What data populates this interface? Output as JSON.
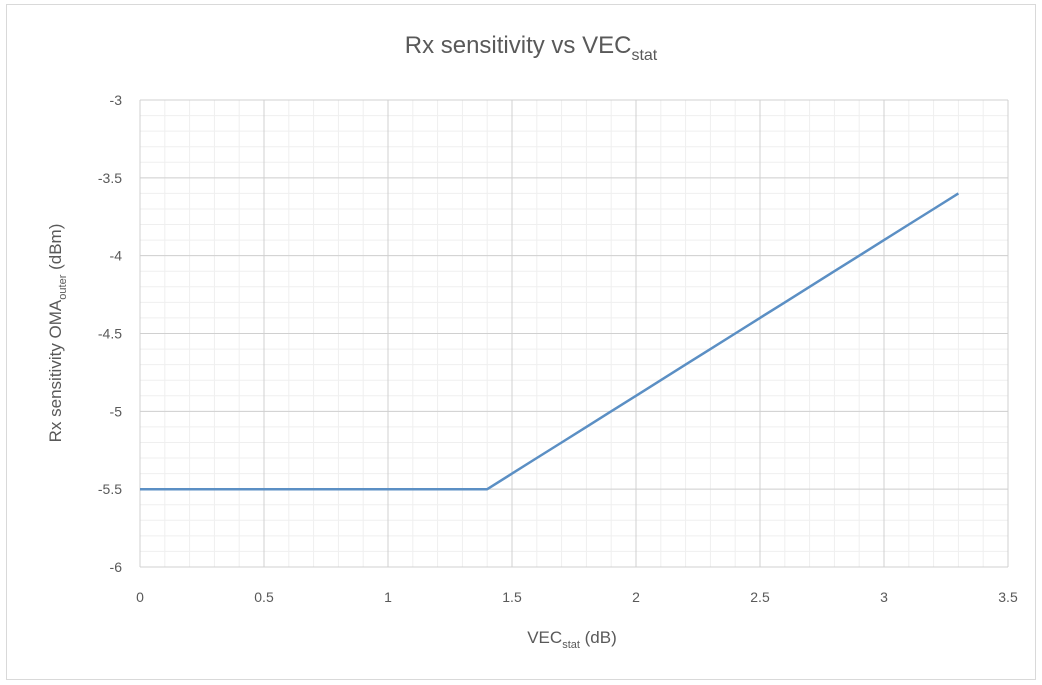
{
  "chart_data": {
    "type": "line",
    "title": {
      "main": "Rx sensitivity vs VEC",
      "sub": "stat"
    },
    "xlabel": {
      "pre": "VEC",
      "sub": "stat",
      "post": " (dB)"
    },
    "ylabel": {
      "pre": "Rx sensitivity OMA",
      "sub": "outer",
      "post": " (dBm)"
    },
    "xlim": [
      0,
      3.5
    ],
    "ylim": [
      -6,
      -3
    ],
    "x_major_step": 0.5,
    "y_major_step": 0.5,
    "x_minor_step": 0.1,
    "y_minor_step": 0.1,
    "grid": true,
    "x_ticks": [
      "0",
      "0.5",
      "1",
      "1.5",
      "2",
      "2.5",
      "3",
      "3.5"
    ],
    "y_ticks": [
      "-3",
      "-3.5",
      "-4",
      "-4.5",
      "-5",
      "-5.5",
      "-6"
    ],
    "series": [
      {
        "color": "#5b8fc4",
        "x": [
          0,
          0.5,
          1.0,
          1.4,
          1.5,
          1.6,
          1.7,
          1.8,
          1.9,
          2.0,
          2.1,
          2.2,
          2.3,
          2.4,
          2.5,
          2.6,
          2.7,
          2.8,
          2.9,
          3.0,
          3.1,
          3.2,
          3.3
        ],
        "y": [
          -5.5,
          -5.5,
          -5.5,
          -5.5,
          -5.4,
          -5.3,
          -5.2,
          -5.1,
          -5.0,
          -4.9,
          -4.8,
          -4.7,
          -4.6,
          -4.5,
          -4.4,
          -4.3,
          -4.2,
          -4.1,
          -4.0,
          -3.9,
          -3.8,
          -3.7,
          -3.6
        ]
      }
    ]
  }
}
